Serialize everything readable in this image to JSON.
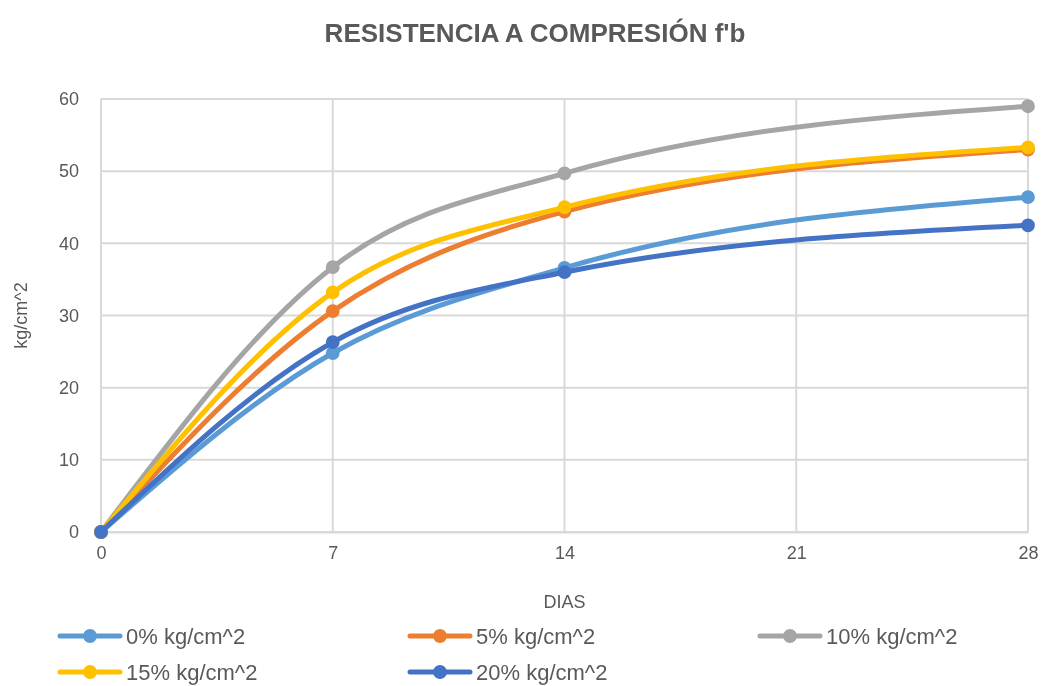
{
  "chart_data": {
    "type": "line",
    "title": "RESISTENCIA A COMPRESIÓN f'b",
    "xlabel": "DIAS",
    "ylabel": "kg/cm^2",
    "x": [
      0,
      7,
      14,
      28
    ],
    "xlim": [
      0,
      28
    ],
    "xticks": [
      0,
      7,
      14,
      21,
      28
    ],
    "ylim": [
      0,
      60
    ],
    "yticks": [
      0,
      10,
      20,
      30,
      40,
      50,
      60
    ],
    "grid": true,
    "legend": "bottom",
    "marker": "circle",
    "line_style": "solid",
    "series": [
      {
        "name": "0% kg/cm^2",
        "color": "#5b9bd5",
        "values": [
          0,
          24.8,
          36.6,
          46.4
        ]
      },
      {
        "name": "5% kg/cm^2",
        "color": "#ed7d31",
        "values": [
          0,
          30.6,
          44.4,
          53.0
        ]
      },
      {
        "name": "10% kg/cm^2",
        "color": "#a5a5a5",
        "values": [
          0,
          36.7,
          49.7,
          59.0
        ]
      },
      {
        "name": "15% kg/cm^2",
        "color": "#ffc000",
        "values": [
          0,
          33.2,
          45.0,
          53.3
        ]
      },
      {
        "name": "20% kg/cm^2",
        "color": "#4472c4",
        "values": [
          0,
          26.3,
          36.0,
          42.5
        ]
      }
    ]
  }
}
